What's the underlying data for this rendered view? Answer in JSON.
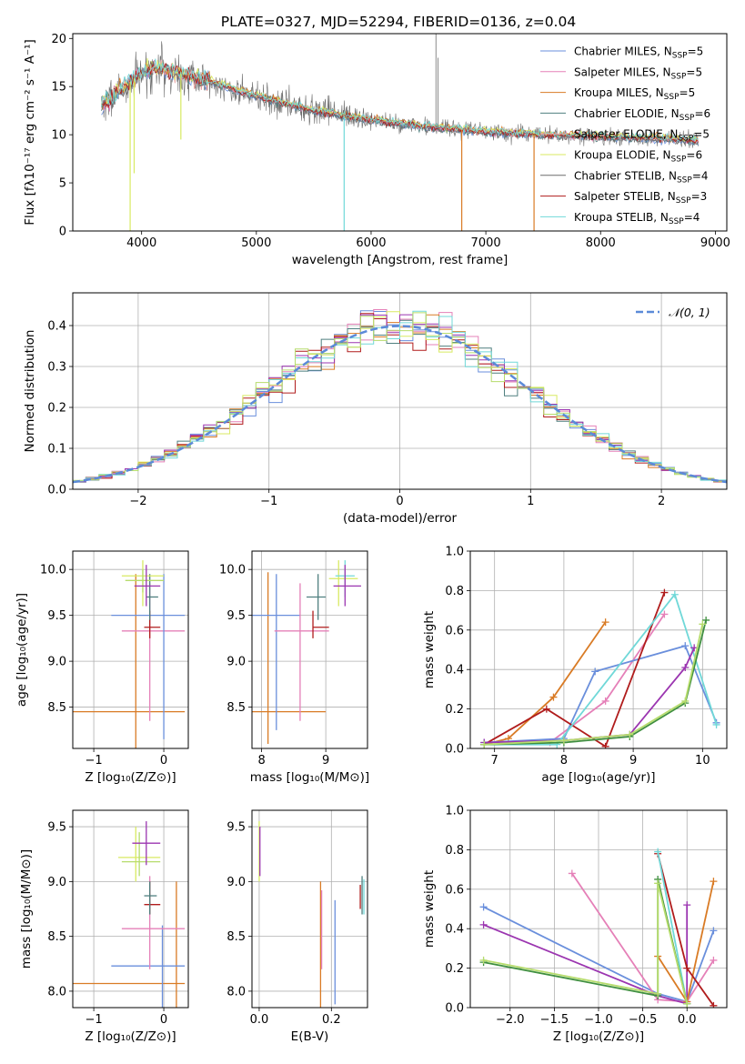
{
  "figure": {
    "title": "PLATE=0327, MJD=52294, FIBERID=0136, z=0.04"
  },
  "colors": {
    "c1": "#6a8fdc",
    "c2": "#e580b8",
    "c3": "#d97b25",
    "c4": "#4f7f7f",
    "c5": "#e89a9a",
    "c6": "#d8ea62",
    "c7": "#6d6d6d",
    "c8": "#b01c1c",
    "c9": "#70d8d8",
    "purple": "#9b35b0",
    "green": "#3f8f3f",
    "lime": "#b6dc6c",
    "normal": "#5b8ad8"
  },
  "chart_data": [
    {
      "id": "spectrum",
      "type": "line",
      "title": "PLATE=0327, MJD=52294, FIBERID=0136, z=0.04",
      "xlabel": "wavelength [Angstrom, rest frame]",
      "ylabel": "Flux [fλ10⁻¹⁷ erg cm⁻² s⁻¹ A⁻¹]",
      "xlim": [
        3400,
        9100
      ],
      "ylim": [
        0,
        20.5
      ],
      "xticks": [
        4000,
        5000,
        6000,
        7000,
        8000,
        9000
      ],
      "yticks": [
        0,
        5,
        10,
        15,
        20
      ],
      "grid": false,
      "legend": "top-right",
      "legend_entries": [
        {
          "base": "Chabrier MILES, N",
          "sub": "SSP",
          "eq": "=5",
          "color": "c1"
        },
        {
          "base": "Salpeter MILES, N",
          "sub": "SSP",
          "eq": "=5",
          "color": "c2"
        },
        {
          "base": "Kroupa MILES, N",
          "sub": "SSP",
          "eq": "=5",
          "color": "c3"
        },
        {
          "base": "Chabrier ELODIE, N",
          "sub": "SSP",
          "eq": "=6",
          "color": "c4"
        },
        {
          "base": "Salpeter ELODIE, N",
          "sub": "SSP",
          "eq": "=5",
          "color": "c5"
        },
        {
          "base": "Kroupa ELODIE, N",
          "sub": "SSP",
          "eq": "=6",
          "color": "c6"
        },
        {
          "base": "Chabrier STELIB, N",
          "sub": "SSP",
          "eq": "=4",
          "color": "c7"
        },
        {
          "base": "Salpeter STELIB, N",
          "sub": "SSP",
          "eq": "=3",
          "color": "c8"
        },
        {
          "base": "Kroupa STELIB, N",
          "sub": "SSP",
          "eq": "=4",
          "color": "c9"
        }
      ],
      "continuum": [
        [
          3650,
          13
        ],
        [
          3800,
          14.5
        ],
        [
          3950,
          16
        ],
        [
          4100,
          17
        ],
        [
          4300,
          16.5
        ],
        [
          4600,
          15.5
        ],
        [
          5000,
          14
        ],
        [
          5500,
          12.5
        ],
        [
          6000,
          11.5
        ],
        [
          6500,
          10.8
        ],
        [
          7000,
          10.3
        ],
        [
          7500,
          10.0
        ],
        [
          8000,
          9.8
        ],
        [
          8500,
          9.6
        ],
        [
          8850,
          9.4
        ]
      ],
      "dips": [
        {
          "x": 3900,
          "y": 0,
          "color": "c6"
        },
        {
          "x": 3935,
          "y": 6,
          "color": "c6"
        },
        {
          "x": 4342,
          "y": 9.5,
          "color": "c6"
        },
        {
          "x": 5765,
          "y": 0,
          "color": "c9"
        },
        {
          "x": 6790,
          "y": 0,
          "color": "c3"
        },
        {
          "x": 7420,
          "y": 0,
          "color": "c3"
        }
      ],
      "spikes": [
        {
          "x": 6565,
          "y": 21,
          "color": "c7"
        },
        {
          "x": 6583,
          "y": 18,
          "color": "c7"
        }
      ]
    },
    {
      "id": "residuals",
      "type": "histogram",
      "xlabel": "(data-model)/error",
      "ylabel": "Normed distribution",
      "xlim": [
        -2.5,
        2.5
      ],
      "ylim": [
        0,
        0.48
      ],
      "xticks": [
        -2,
        -1,
        0,
        1,
        2
      ],
      "yticks": [
        0,
        0.1,
        0.2,
        0.3,
        0.4
      ],
      "xticklabels": [
        "−2",
        "−1",
        "0",
        "1",
        "2"
      ],
      "yticklabels": [
        "0.0",
        "0.1",
        "0.2",
        "0.3",
        "0.4"
      ],
      "grid": true,
      "legend": "top-right",
      "legend_label": "𝒩(0, 1)",
      "bin_width": 0.1,
      "series_colors": [
        "c1",
        "c2",
        "c3",
        "c4",
        "c8",
        "c6",
        "purple",
        "c9",
        "lime"
      ]
    },
    {
      "id": "age-Z",
      "type": "errorbar",
      "xlabel": "Z [log₁₀(Z/Z⊙)]",
      "ylabel": "age  [log₁₀(age/yr)]",
      "xlim": [
        -1.3,
        0.35
      ],
      "ylim": [
        8.05,
        10.2
      ],
      "xticks": [
        -1,
        0
      ],
      "yticks": [
        8.5,
        9.0,
        9.5,
        10.0
      ],
      "xticklabels": [
        "−1",
        "0"
      ],
      "yticklabels": [
        "8.5",
        "9.0",
        "9.5",
        "10.0"
      ],
      "grid": true,
      "points": [
        {
          "x": -0.4,
          "xlo": -1.3,
          "xhi": 0.3,
          "y": 8.45,
          "ylo": 8.05,
          "yhi": 9.95,
          "color": "c3"
        },
        {
          "x": -0.2,
          "xlo": -0.6,
          "xhi": 0.3,
          "y": 9.33,
          "ylo": 8.35,
          "yhi": 9.85,
          "color": "c2"
        },
        {
          "x": 0,
          "xlo": -0.75,
          "xhi": 0.3,
          "y": 9.5,
          "ylo": 8.15,
          "yhi": 9.95,
          "color": "c1"
        },
        {
          "x": -0.2,
          "xlo": -0.28,
          "xhi": -0.05,
          "y": 9.37,
          "ylo": 9.25,
          "yhi": 9.55,
          "color": "c8"
        },
        {
          "x": -0.2,
          "xlo": -0.25,
          "xhi": -0.08,
          "y": 9.7,
          "ylo": 9.45,
          "yhi": 9.95,
          "color": "c4"
        },
        {
          "x": -0.3,
          "xlo": -0.6,
          "xhi": 0.0,
          "y": 9.93,
          "ylo": 9.6,
          "yhi": 10.1,
          "color": "c6"
        },
        {
          "x": -0.3,
          "xlo": -0.55,
          "xhi": 0.0,
          "y": 9.88,
          "ylo": 9.75,
          "yhi": 10.0,
          "color": "lime"
        },
        {
          "x": -0.25,
          "xlo": -0.42,
          "xhi": -0.05,
          "y": 9.82,
          "ylo": 9.6,
          "yhi": 10.05,
          "color": "purple"
        }
      ]
    },
    {
      "id": "age-mass",
      "type": "errorbar",
      "xlabel": "mass [log₁₀(M/M⊙)]",
      "ylabel": "",
      "xlim": [
        7.85,
        9.65
      ],
      "ylim": [
        8.05,
        10.2
      ],
      "xticks": [
        8,
        9
      ],
      "yticks": [
        8.5,
        9.0,
        9.5,
        10.0
      ],
      "xticklabels": [
        "8",
        "9"
      ],
      "yticklabels": [
        "8.5",
        "9.0",
        "9.5",
        "10.0"
      ],
      "grid": true,
      "points": [
        {
          "x": 8.1,
          "xlo": 7.85,
          "xhi": 9.0,
          "y": 8.45,
          "ylo": 8.1,
          "yhi": 9.97,
          "color": "c3"
        },
        {
          "x": 8.23,
          "xlo": 7.85,
          "xhi": 8.6,
          "y": 9.5,
          "ylo": 8.25,
          "yhi": 9.95,
          "color": "c1"
        },
        {
          "x": 8.6,
          "xlo": 8.2,
          "xhi": 9.05,
          "y": 9.33,
          "ylo": 8.35,
          "yhi": 9.85,
          "color": "c2"
        },
        {
          "x": 8.8,
          "xlo": 8.8,
          "xhi": 9.05,
          "y": 9.37,
          "ylo": 9.25,
          "yhi": 9.55,
          "color": "c8"
        },
        {
          "x": 8.88,
          "xlo": 8.7,
          "xhi": 9.0,
          "y": 9.7,
          "ylo": 9.45,
          "yhi": 9.95,
          "color": "c4"
        },
        {
          "x": 9.2,
          "xlo": 9.05,
          "xhi": 9.5,
          "y": 9.9,
          "ylo": 9.6,
          "yhi": 10.1,
          "color": "c6"
        },
        {
          "x": 9.3,
          "xlo": 9.15,
          "xhi": 9.45,
          "y": 9.93,
          "ylo": 9.7,
          "yhi": 10.1,
          "color": "c9"
        },
        {
          "x": 9.3,
          "xlo": 9.12,
          "xhi": 9.55,
          "y": 9.82,
          "ylo": 9.6,
          "yhi": 10.05,
          "color": "purple"
        }
      ]
    },
    {
      "id": "mw-age",
      "type": "line",
      "xlabel": "age  [log₁₀(age/yr)]",
      "ylabel": "mass weight",
      "xlim": [
        6.65,
        10.35
      ],
      "ylim": [
        0,
        1.0
      ],
      "xticks": [
        7,
        8,
        9,
        10
      ],
      "yticks": [
        0,
        0.2,
        0.4,
        0.6,
        0.8,
        1.0
      ],
      "xticklabels": [
        "7",
        "8",
        "9",
        "10"
      ],
      "yticklabels": [
        "0.0",
        "0.2",
        "0.4",
        "0.6",
        "0.8",
        "1.0"
      ],
      "grid": true,
      "series": [
        {
          "color": "c3",
          "points": [
            [
              6.85,
              0.02
            ],
            [
              7.2,
              0.05
            ],
            [
              7.85,
              0.26
            ],
            [
              8.6,
              0.64
            ]
          ]
        },
        {
          "color": "c2",
          "points": [
            [
              6.85,
              0.02
            ],
            [
              7.8,
              0.03
            ],
            [
              8.6,
              0.24
            ],
            [
              9.45,
              0.68
            ]
          ]
        },
        {
          "color": "c1",
          "points": [
            [
              6.85,
              0.03
            ],
            [
              8.0,
              0.05
            ],
            [
              8.45,
              0.39
            ],
            [
              9.75,
              0.52
            ],
            [
              10.2,
              0.13
            ]
          ]
        },
        {
          "color": "c8",
          "points": [
            [
              6.85,
              0.02
            ],
            [
              7.75,
              0.2
            ],
            [
              8.6,
              0.01
            ],
            [
              9.45,
              0.79
            ]
          ]
        },
        {
          "color": "c9",
          "points": [
            [
              6.85,
              0.02
            ],
            [
              7.9,
              0.02
            ],
            [
              9.6,
              0.78
            ],
            [
              10.2,
              0.12
            ]
          ]
        },
        {
          "color": "purple",
          "points": [
            [
              6.85,
              0.03
            ],
            [
              8.0,
              0.04
            ],
            [
              8.95,
              0.07
            ],
            [
              9.75,
              0.41
            ],
            [
              9.88,
              0.51
            ]
          ]
        },
        {
          "color": "green",
          "points": [
            [
              6.85,
              0.02
            ],
            [
              8.0,
              0.03
            ],
            [
              8.95,
              0.06
            ],
            [
              9.75,
              0.23
            ],
            [
              10.05,
              0.65
            ]
          ]
        },
        {
          "color": "lime",
          "points": [
            [
              6.85,
              0.02
            ],
            [
              8.0,
              0.04
            ],
            [
              8.95,
              0.07
            ],
            [
              9.75,
              0.24
            ],
            [
              10.0,
              0.63
            ]
          ]
        }
      ]
    },
    {
      "id": "mass-Z",
      "type": "errorbar",
      "xlabel": "Z [log₁₀(Z/Z⊙)]",
      "ylabel": "mass [log₁₀(M/M⊙)]",
      "xlim": [
        -1.3,
        0.35
      ],
      "ylim": [
        7.85,
        9.65
      ],
      "xticks": [
        -1,
        0
      ],
      "yticks": [
        8.0,
        8.5,
        9.0,
        9.5
      ],
      "xticklabels": [
        "−1",
        "0"
      ],
      "yticklabels": [
        "8.0",
        "8.5",
        "9.0",
        "9.5"
      ],
      "grid": true,
      "points": [
        {
          "x": 0.18,
          "xlo": -1.3,
          "xhi": 0.3,
          "y": 8.07,
          "ylo": 7.85,
          "yhi": 9.0,
          "color": "c3"
        },
        {
          "x": -0.02,
          "xlo": -0.75,
          "xhi": 0.3,
          "y": 8.23,
          "ylo": 7.85,
          "yhi": 8.6,
          "color": "c1"
        },
        {
          "x": -0.2,
          "xlo": -0.6,
          "xhi": 0.3,
          "y": 8.57,
          "ylo": 8.2,
          "yhi": 9.05,
          "color": "c2"
        },
        {
          "x": -0.2,
          "xlo": -0.28,
          "xhi": -0.05,
          "y": 8.79,
          "ylo": 8.7,
          "yhi": 9.0,
          "color": "c8"
        },
        {
          "x": -0.2,
          "xlo": -0.28,
          "xhi": -0.1,
          "y": 8.87,
          "ylo": 8.7,
          "yhi": 9.0,
          "color": "c4"
        },
        {
          "x": -0.4,
          "xlo": -0.65,
          "xhi": -0.05,
          "y": 9.22,
          "ylo": 9.0,
          "yhi": 9.5,
          "color": "c6"
        },
        {
          "x": -0.35,
          "xlo": -0.6,
          "xhi": -0.05,
          "y": 9.18,
          "ylo": 9.05,
          "yhi": 9.45,
          "color": "lime"
        },
        {
          "x": -0.25,
          "xlo": -0.45,
          "xhi": -0.05,
          "y": 9.35,
          "ylo": 9.15,
          "yhi": 9.55,
          "color": "purple"
        }
      ]
    },
    {
      "id": "mass-EBV",
      "type": "errorbar",
      "xlabel": "E(B-V)",
      "ylabel": "",
      "xlim": [
        -0.02,
        0.3
      ],
      "ylim": [
        7.85,
        9.65
      ],
      "xticks": [
        0.0,
        0.2
      ],
      "yticks": [
        8.0,
        8.5,
        9.0,
        9.5
      ],
      "xticklabels": [
        "0.0",
        "0.2"
      ],
      "yticklabels": [
        "8.0",
        "8.5",
        "9.0",
        "9.5"
      ],
      "grid": true,
      "points": [
        {
          "x": 0.0,
          "xlo": 0.0,
          "xhi": 0.0,
          "y": 9.25,
          "ylo": 9.0,
          "yhi": 9.55,
          "color": "c6"
        },
        {
          "x": 0.002,
          "xlo": 0.002,
          "xhi": 0.002,
          "y": 9.3,
          "ylo": 9.05,
          "yhi": 9.5,
          "color": "purple"
        },
        {
          "x": 0.17,
          "xlo": 0.17,
          "xhi": 0.17,
          "y": 8.07,
          "ylo": 7.85,
          "yhi": 9.0,
          "color": "c3"
        },
        {
          "x": 0.173,
          "xlo": 0.173,
          "xhi": 0.173,
          "y": 8.57,
          "ylo": 8.2,
          "yhi": 8.92,
          "color": "c2"
        },
        {
          "x": 0.21,
          "xlo": 0.21,
          "xhi": 0.21,
          "y": 8.23,
          "ylo": 7.88,
          "yhi": 8.83,
          "color": "c1"
        },
        {
          "x": 0.28,
          "xlo": 0.28,
          "xhi": 0.28,
          "y": 8.79,
          "ylo": 8.75,
          "yhi": 8.97,
          "color": "c8"
        },
        {
          "x": 0.285,
          "xlo": 0.285,
          "xhi": 0.285,
          "y": 8.87,
          "ylo": 8.7,
          "yhi": 9.05,
          "color": "c4"
        },
        {
          "x": 0.29,
          "xlo": 0.29,
          "xhi": 0.29,
          "y": 8.85,
          "ylo": 8.7,
          "yhi": 9.02,
          "color": "c9"
        }
      ]
    },
    {
      "id": "mw-Z",
      "type": "line",
      "xlabel": "Z [log₁₀(Z/Z⊙)]",
      "ylabel": "mass weight",
      "xlim": [
        -2.45,
        0.45
      ],
      "ylim": [
        0,
        1.0
      ],
      "xticks": [
        -2.0,
        -1.5,
        -1.0,
        -0.5,
        0.0
      ],
      "yticks": [
        0,
        0.2,
        0.4,
        0.6,
        0.8,
        1.0
      ],
      "xticklabels": [
        "−2.0",
        "−1.5",
        "−1.0",
        "−0.5",
        "0.0"
      ],
      "yticklabels": [
        "0.0",
        "0.2",
        "0.4",
        "0.6",
        "0.8",
        "1.0"
      ],
      "grid": true,
      "series": [
        {
          "color": "c1",
          "points": [
            [
              -2.3,
              0.51
            ],
            [
              -0.33,
              0.07
            ],
            [
              0.0,
              0.03
            ],
            [
              0.3,
              0.39
            ]
          ]
        },
        {
          "color": "c2",
          "points": [
            [
              -1.3,
              0.68
            ],
            [
              -0.33,
              0.04
            ],
            [
              0.0,
              0.03
            ],
            [
              0.3,
              0.24
            ]
          ]
        },
        {
          "color": "purple",
          "points": [
            [
              -2.3,
              0.42
            ],
            [
              -0.33,
              0.06
            ],
            [
              0.0,
              0.02
            ],
            [
              0.0,
              0.52
            ]
          ]
        },
        {
          "color": "c3",
          "points": [
            [
              -0.33,
              0.26
            ],
            [
              0.0,
              0.03
            ],
            [
              0.3,
              0.64
            ]
          ]
        },
        {
          "color": "c8",
          "points": [
            [
              -0.33,
              0.78
            ],
            [
              0.0,
              0.2
            ],
            [
              0.3,
              0.01
            ]
          ]
        },
        {
          "color": "c9",
          "points": [
            [
              -0.33,
              0.79
            ],
            [
              0.0,
              0.02
            ]
          ]
        },
        {
          "color": "green",
          "points": [
            [
              -2.3,
              0.23
            ],
            [
              -0.33,
              0.06
            ],
            [
              -0.33,
              0.65
            ],
            [
              0.0,
              0.02
            ]
          ]
        },
        {
          "color": "lime",
          "points": [
            [
              -2.3,
              0.24
            ],
            [
              -0.33,
              0.07
            ],
            [
              -0.33,
              0.63
            ],
            [
              0.0,
              0.02
            ]
          ]
        }
      ]
    }
  ]
}
